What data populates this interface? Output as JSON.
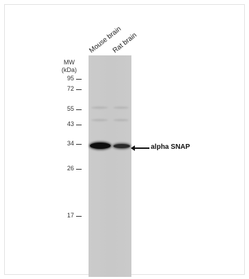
{
  "mw": {
    "title_line1": "MW",
    "title_line2": "(kDa)",
    "markers": [
      "95",
      "72",
      "55",
      "43",
      "34",
      "26",
      "17"
    ]
  },
  "lanes": [
    "Mouse brain",
    "Rat brain"
  ],
  "target": "alpha SNAP"
}
